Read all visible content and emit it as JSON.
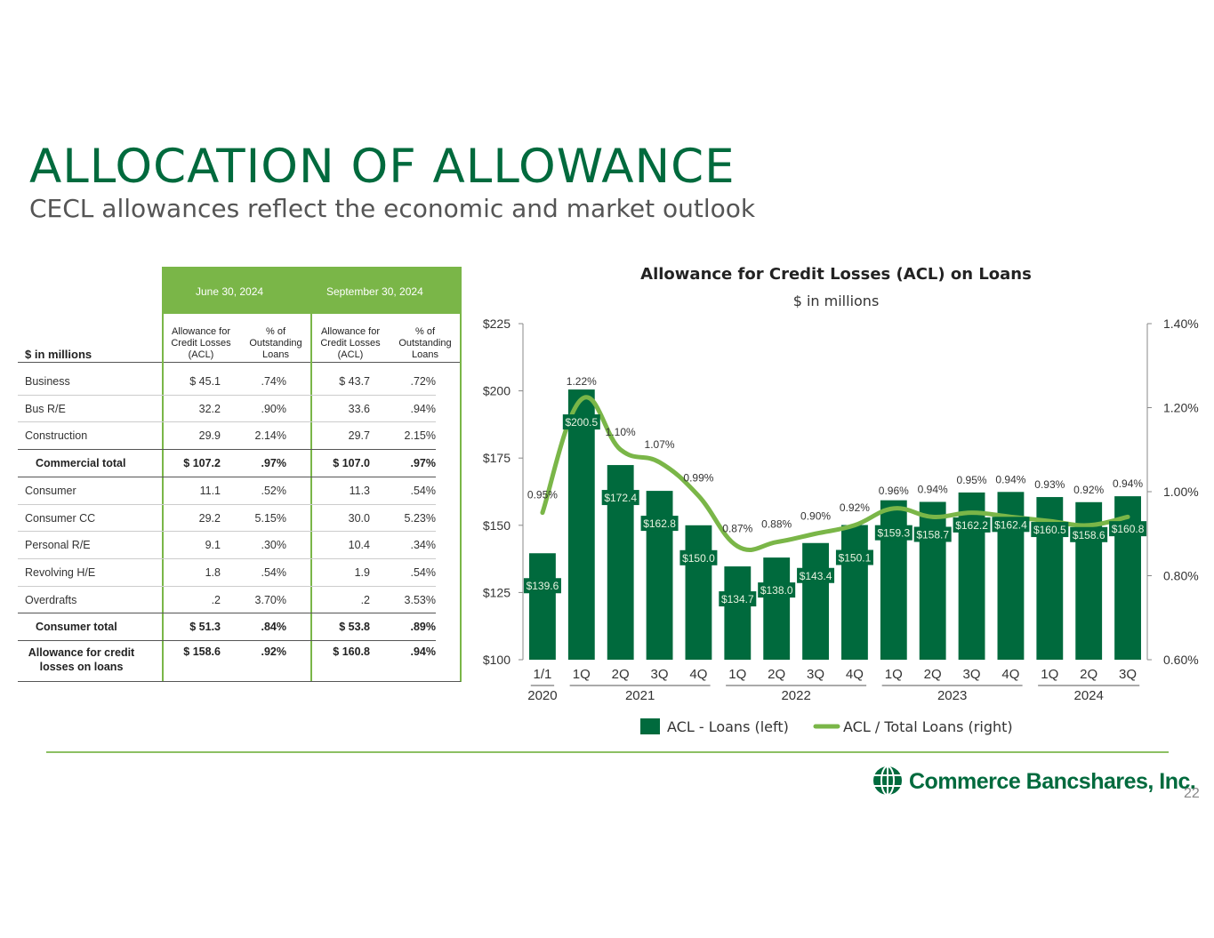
{
  "title": "ALLOCATION OF ALLOWANCE",
  "subtitle": "CECL allowances reflect the economic and market outlook",
  "table": {
    "units": "$ in millions",
    "periods": [
      "June 30, 2024",
      "September 30, 2024"
    ],
    "col_headers": [
      "Allowance for Credit Losses (ACL)",
      "% of Outstanding Loans",
      "Allowance for Credit Losses (ACL)",
      "% of Outstanding Loans"
    ],
    "rows": [
      {
        "label": "Business",
        "v": [
          "$  45.1",
          ".74%",
          "$  43.7",
          ".72%"
        ],
        "bold": false
      },
      {
        "label": "Bus R/E",
        "v": [
          "32.2",
          ".90%",
          "33.6",
          ".94%"
        ],
        "bold": false
      },
      {
        "label": "Construction",
        "v": [
          "29.9",
          "2.14%",
          "29.7",
          "2.15%"
        ],
        "bold": false
      },
      {
        "label": "Commercial total",
        "v": [
          "$  107.2",
          ".97%",
          "$  107.0",
          ".97%"
        ],
        "bold": true
      },
      {
        "label": "Consumer",
        "v": [
          "11.1",
          ".52%",
          "11.3",
          ".54%"
        ],
        "bold": false
      },
      {
        "label": "Consumer CC",
        "v": [
          "29.2",
          "5.15%",
          "30.0",
          "5.23%"
        ],
        "bold": false
      },
      {
        "label": "Personal R/E",
        "v": [
          "9.1",
          ".30%",
          "10.4",
          ".34%"
        ],
        "bold": false
      },
      {
        "label": "Revolving H/E",
        "v": [
          "1.8",
          ".54%",
          "1.9",
          ".54%"
        ],
        "bold": false
      },
      {
        "label": "Overdrafts",
        "v": [
          ".2",
          "3.70%",
          ".2",
          "3.53%"
        ],
        "bold": false
      },
      {
        "label": "Consumer total",
        "v": [
          "$  51.3",
          ".84%",
          "$  53.8",
          ".89%"
        ],
        "bold": true
      },
      {
        "label": "Allowance for credit losses on loans",
        "v": [
          "$  158.6",
          ".92%",
          "$  160.8",
          ".94%"
        ],
        "bold": true
      }
    ]
  },
  "chart_data": {
    "type": "bar",
    "title": "Allowance for Credit Losses (ACL) on Loans",
    "subtitle": "$ in millions",
    "categories": [
      "1/1",
      "1Q",
      "2Q",
      "3Q",
      "4Q",
      "1Q",
      "2Q",
      "3Q",
      "4Q",
      "1Q",
      "2Q",
      "3Q",
      "4Q",
      "1Q",
      "2Q",
      "3Q"
    ],
    "year_groups": [
      {
        "label": "2020",
        "from": 0,
        "to": 0
      },
      {
        "label": "2021",
        "from": 1,
        "to": 4
      },
      {
        "label": "2022",
        "from": 5,
        "to": 8
      },
      {
        "label": "2023",
        "from": 9,
        "to": 12
      },
      {
        "label": "2024",
        "from": 13,
        "to": 15
      }
    ],
    "series": [
      {
        "name": "ACL - Loans (left)",
        "kind": "bar",
        "axis": "left",
        "values": [
          139.6,
          200.5,
          172.4,
          162.8,
          150.0,
          134.7,
          138.0,
          143.4,
          150.1,
          159.3,
          158.7,
          162.2,
          162.4,
          160.5,
          158.6,
          160.8
        ],
        "labels": [
          "$139.6",
          "$200.5",
          "$172.4",
          "$162.8",
          "$150.0",
          "$134.7",
          "$138.0",
          "$143.4",
          "$150.1",
          "$159.3",
          "$158.7",
          "$162.2",
          "$162.4",
          "$160.5",
          "$158.6",
          "$160.8"
        ]
      },
      {
        "name": "ACL / Total Loans (right)",
        "kind": "line",
        "axis": "right",
        "values": [
          0.95,
          1.22,
          1.1,
          1.07,
          0.99,
          0.87,
          0.88,
          0.9,
          0.92,
          0.96,
          0.94,
          0.95,
          0.94,
          0.93,
          0.92,
          0.94
        ],
        "labels": [
          "0.95%",
          "1.22%",
          "1.10%",
          "1.07%",
          "0.99%",
          "0.87%",
          "0.88%",
          "0.90%",
          "0.92%",
          "0.96%",
          "0.94%",
          "0.95%",
          "0.94%",
          "0.93%",
          "0.92%",
          "0.94%"
        ]
      }
    ],
    "y_left": {
      "min": 100,
      "max": 225,
      "ticks": [
        100,
        125,
        150,
        175,
        200,
        225
      ],
      "tick_labels": [
        "$100",
        "$125",
        "$150",
        "$175",
        "$200",
        "$225"
      ]
    },
    "y_right": {
      "min": 0.6,
      "max": 1.4,
      "ticks": [
        0.6,
        0.8,
        1.0,
        1.2,
        1.4
      ],
      "tick_labels": [
        "0.60%",
        "0.80%",
        "1.00%",
        "1.20%",
        "1.40%"
      ]
    },
    "legend_position": "bottom",
    "colors": {
      "bar": "#006a3d",
      "line": "#7ab648"
    }
  },
  "company": "Commerce Bancshares, Inc.",
  "page_number": "22"
}
